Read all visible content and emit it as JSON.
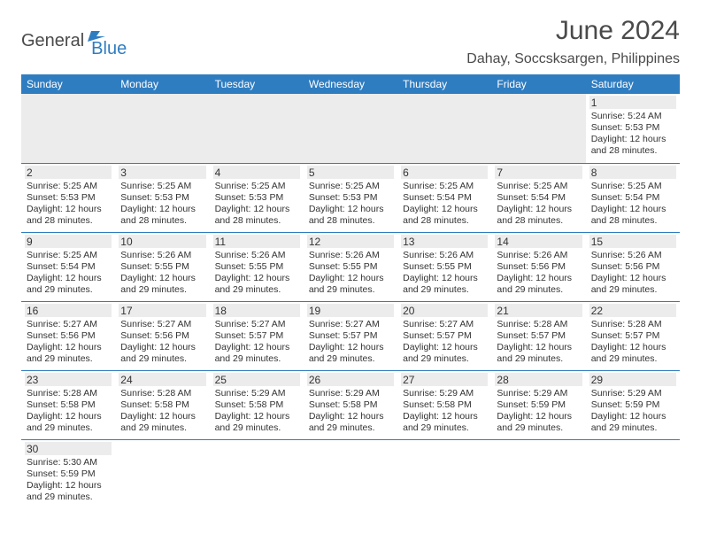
{
  "logo": {
    "part1": "General",
    "part2": "Blue"
  },
  "title": "June 2024",
  "location": "Dahay, Soccsksargen, Philippines",
  "colors": {
    "header_bg": "#2f7dc1",
    "header_text": "#ffffff",
    "daynum_bg": "#ececec",
    "border": "#2f7dc1",
    "text": "#333333",
    "logo_gray": "#4a4a4a",
    "logo_blue": "#2f7dc1"
  },
  "columns": [
    "Sunday",
    "Monday",
    "Tuesday",
    "Wednesday",
    "Thursday",
    "Friday",
    "Saturday"
  ],
  "weeks": [
    [
      null,
      null,
      null,
      null,
      null,
      null,
      {
        "n": "1",
        "sunrise": "Sunrise: 5:24 AM",
        "sunset": "Sunset: 5:53 PM",
        "daylight": "Daylight: 12 hours and 28 minutes."
      }
    ],
    [
      {
        "n": "2",
        "sunrise": "Sunrise: 5:25 AM",
        "sunset": "Sunset: 5:53 PM",
        "daylight": "Daylight: 12 hours and 28 minutes."
      },
      {
        "n": "3",
        "sunrise": "Sunrise: 5:25 AM",
        "sunset": "Sunset: 5:53 PM",
        "daylight": "Daylight: 12 hours and 28 minutes."
      },
      {
        "n": "4",
        "sunrise": "Sunrise: 5:25 AM",
        "sunset": "Sunset: 5:53 PM",
        "daylight": "Daylight: 12 hours and 28 minutes."
      },
      {
        "n": "5",
        "sunrise": "Sunrise: 5:25 AM",
        "sunset": "Sunset: 5:53 PM",
        "daylight": "Daylight: 12 hours and 28 minutes."
      },
      {
        "n": "6",
        "sunrise": "Sunrise: 5:25 AM",
        "sunset": "Sunset: 5:54 PM",
        "daylight": "Daylight: 12 hours and 28 minutes."
      },
      {
        "n": "7",
        "sunrise": "Sunrise: 5:25 AM",
        "sunset": "Sunset: 5:54 PM",
        "daylight": "Daylight: 12 hours and 28 minutes."
      },
      {
        "n": "8",
        "sunrise": "Sunrise: 5:25 AM",
        "sunset": "Sunset: 5:54 PM",
        "daylight": "Daylight: 12 hours and 28 minutes."
      }
    ],
    [
      {
        "n": "9",
        "sunrise": "Sunrise: 5:25 AM",
        "sunset": "Sunset: 5:54 PM",
        "daylight": "Daylight: 12 hours and 29 minutes."
      },
      {
        "n": "10",
        "sunrise": "Sunrise: 5:26 AM",
        "sunset": "Sunset: 5:55 PM",
        "daylight": "Daylight: 12 hours and 29 minutes."
      },
      {
        "n": "11",
        "sunrise": "Sunrise: 5:26 AM",
        "sunset": "Sunset: 5:55 PM",
        "daylight": "Daylight: 12 hours and 29 minutes."
      },
      {
        "n": "12",
        "sunrise": "Sunrise: 5:26 AM",
        "sunset": "Sunset: 5:55 PM",
        "daylight": "Daylight: 12 hours and 29 minutes."
      },
      {
        "n": "13",
        "sunrise": "Sunrise: 5:26 AM",
        "sunset": "Sunset: 5:55 PM",
        "daylight": "Daylight: 12 hours and 29 minutes."
      },
      {
        "n": "14",
        "sunrise": "Sunrise: 5:26 AM",
        "sunset": "Sunset: 5:56 PM",
        "daylight": "Daylight: 12 hours and 29 minutes."
      },
      {
        "n": "15",
        "sunrise": "Sunrise: 5:26 AM",
        "sunset": "Sunset: 5:56 PM",
        "daylight": "Daylight: 12 hours and 29 minutes."
      }
    ],
    [
      {
        "n": "16",
        "sunrise": "Sunrise: 5:27 AM",
        "sunset": "Sunset: 5:56 PM",
        "daylight": "Daylight: 12 hours and 29 minutes."
      },
      {
        "n": "17",
        "sunrise": "Sunrise: 5:27 AM",
        "sunset": "Sunset: 5:56 PM",
        "daylight": "Daylight: 12 hours and 29 minutes."
      },
      {
        "n": "18",
        "sunrise": "Sunrise: 5:27 AM",
        "sunset": "Sunset: 5:57 PM",
        "daylight": "Daylight: 12 hours and 29 minutes."
      },
      {
        "n": "19",
        "sunrise": "Sunrise: 5:27 AM",
        "sunset": "Sunset: 5:57 PM",
        "daylight": "Daylight: 12 hours and 29 minutes."
      },
      {
        "n": "20",
        "sunrise": "Sunrise: 5:27 AM",
        "sunset": "Sunset: 5:57 PM",
        "daylight": "Daylight: 12 hours and 29 minutes."
      },
      {
        "n": "21",
        "sunrise": "Sunrise: 5:28 AM",
        "sunset": "Sunset: 5:57 PM",
        "daylight": "Daylight: 12 hours and 29 minutes."
      },
      {
        "n": "22",
        "sunrise": "Sunrise: 5:28 AM",
        "sunset": "Sunset: 5:57 PM",
        "daylight": "Daylight: 12 hours and 29 minutes."
      }
    ],
    [
      {
        "n": "23",
        "sunrise": "Sunrise: 5:28 AM",
        "sunset": "Sunset: 5:58 PM",
        "daylight": "Daylight: 12 hours and 29 minutes."
      },
      {
        "n": "24",
        "sunrise": "Sunrise: 5:28 AM",
        "sunset": "Sunset: 5:58 PM",
        "daylight": "Daylight: 12 hours and 29 minutes."
      },
      {
        "n": "25",
        "sunrise": "Sunrise: 5:29 AM",
        "sunset": "Sunset: 5:58 PM",
        "daylight": "Daylight: 12 hours and 29 minutes."
      },
      {
        "n": "26",
        "sunrise": "Sunrise: 5:29 AM",
        "sunset": "Sunset: 5:58 PM",
        "daylight": "Daylight: 12 hours and 29 minutes."
      },
      {
        "n": "27",
        "sunrise": "Sunrise: 5:29 AM",
        "sunset": "Sunset: 5:58 PM",
        "daylight": "Daylight: 12 hours and 29 minutes."
      },
      {
        "n": "28",
        "sunrise": "Sunrise: 5:29 AM",
        "sunset": "Sunset: 5:59 PM",
        "daylight": "Daylight: 12 hours and 29 minutes."
      },
      {
        "n": "29",
        "sunrise": "Sunrise: 5:29 AM",
        "sunset": "Sunset: 5:59 PM",
        "daylight": "Daylight: 12 hours and 29 minutes."
      }
    ],
    [
      {
        "n": "30",
        "sunrise": "Sunrise: 5:30 AM",
        "sunset": "Sunset: 5:59 PM",
        "daylight": "Daylight: 12 hours and 29 minutes."
      },
      null,
      null,
      null,
      null,
      null,
      null
    ]
  ]
}
